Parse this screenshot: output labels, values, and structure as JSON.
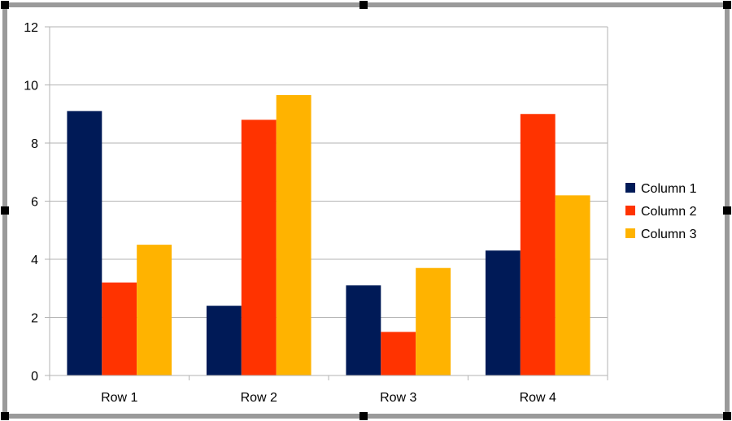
{
  "chart_data": {
    "type": "bar",
    "categories": [
      "Row 1",
      "Row 2",
      "Row 3",
      "Row 4"
    ],
    "series": [
      {
        "name": "Column 1",
        "values": [
          9.1,
          2.4,
          3.1,
          4.3
        ],
        "color": "#001a57"
      },
      {
        "name": "Column 2",
        "values": [
          3.2,
          8.8,
          1.5,
          9.0
        ],
        "color": "#ff3300"
      },
      {
        "name": "Column 3",
        "values": [
          4.5,
          9.65,
          3.7,
          6.2
        ],
        "color": "#ffb300"
      }
    ],
    "y_ticks": [
      "0",
      "2",
      "4",
      "6",
      "8",
      "10",
      "12"
    ],
    "ylim": [
      0,
      12
    ],
    "grid": true,
    "legend_position": "right",
    "title": "",
    "xlabel": "",
    "ylabel": ""
  },
  "colors": {
    "gridline": "#b3b3b3",
    "frame": "#9a9a9a",
    "handle": "#000000"
  }
}
